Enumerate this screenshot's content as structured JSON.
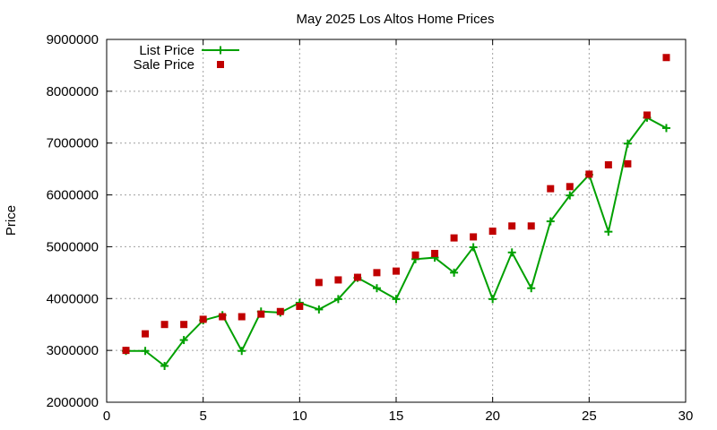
{
  "chart_data": {
    "type": "line",
    "title": "May 2025 Los Altos Home Prices",
    "xlabel": "",
    "ylabel": "Price",
    "xlim": [
      0,
      30
    ],
    "ylim": [
      2000000,
      9000000
    ],
    "grid": true,
    "legend_position": "top-left",
    "x_ticks": [
      0,
      5,
      10,
      15,
      20,
      25,
      30
    ],
    "y_ticks": [
      2000000,
      3000000,
      4000000,
      5000000,
      6000000,
      7000000,
      8000000,
      9000000
    ],
    "x_tick_labels": [
      "0",
      "5",
      "10",
      "15",
      "20",
      "25",
      "30"
    ],
    "y_tick_labels": [
      "2000000",
      "3000000",
      "4000000",
      "5000000",
      "6000000",
      "7000000",
      "8000000",
      "9000000"
    ],
    "x": [
      1,
      2,
      3,
      4,
      5,
      6,
      7,
      8,
      9,
      10,
      11,
      12,
      13,
      14,
      15,
      16,
      17,
      18,
      19,
      20,
      21,
      22,
      23,
      24,
      25,
      26,
      27,
      28,
      29
    ],
    "series": [
      {
        "name": "List Price",
        "style": "line-plus",
        "color": "#00a000",
        "values": [
          2990000,
          2990000,
          2700000,
          3200000,
          3580000,
          3680000,
          2990000,
          3750000,
          3730000,
          3920000,
          3790000,
          3990000,
          4400000,
          4200000,
          3990000,
          4760000,
          4790000,
          4500000,
          4990000,
          3990000,
          4890000,
          4200000,
          5490000,
          5990000,
          6390000,
          5290000,
          6990000,
          7490000,
          7290000
        ]
      },
      {
        "name": "Sale Price",
        "style": "square-marker",
        "color": "#c00000",
        "values": [
          3000000,
          3320000,
          3500000,
          3500000,
          3600000,
          3650000,
          3650000,
          3700000,
          3750000,
          3850000,
          4310000,
          4360000,
          4410000,
          4500000,
          4530000,
          4840000,
          4870000,
          5170000,
          5190000,
          5300000,
          5400000,
          5400000,
          6120000,
          6160000,
          6400000,
          6580000,
          6600000,
          7540000,
          8650000
        ]
      }
    ]
  }
}
